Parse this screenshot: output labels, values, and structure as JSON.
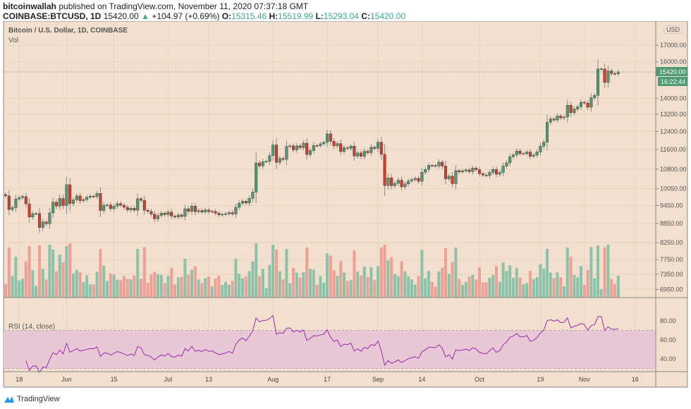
{
  "header": {
    "author": "bitcoinwallah",
    "published": "published on TradingView.com, November 11, 2020 07:37:18 GMT",
    "symbol": "COINBASE:BTCUSD, 1D",
    "last": "15420.00",
    "change": "+104.97 (+0.69%)",
    "o_label": "O:",
    "o": "15315.46",
    "h_label": "H:",
    "h": "15519.99",
    "l_label": "L:",
    "l": "15293.04",
    "c_label": "C:",
    "c": "15420.00"
  },
  "pane_legend": {
    "title": "Bitcoin / U.S. Dollar, 1D, COINBASE",
    "vol": "Vol",
    "rsi": "RSI (14, close)"
  },
  "axis": {
    "currency": "USD",
    "countdown": "16:22:44"
  },
  "footer": {
    "brand": "TradingView"
  },
  "colors": {
    "background": "#f2dfcd",
    "up": "#4e9a72",
    "down": "#c8402f",
    "rsi_line": "#9c27b0",
    "rsi_band": "#e8c8d4",
    "last_price": "#4e9a72"
  },
  "chart_data": {
    "type": "candlestick",
    "title": "Bitcoin / U.S. Dollar, 1D, COINBASE",
    "start_date": "2020-05-14",
    "end_date": "2020-11-11",
    "scale": "log",
    "grid": true,
    "price_ticks": [
      "17000.00",
      "16000.00",
      "14000.00",
      "13200.00",
      "12400.00",
      "11600.00",
      "10800.00",
      "10050.00",
      "9450.00",
      "8850.00",
      "8250.00",
      "7750.00",
      "7350.00",
      "6950.00"
    ],
    "price_tick_values": [
      17000,
      16000,
      14000,
      13200,
      12400,
      11600,
      10800,
      10050,
      9450,
      8850,
      8250,
      7750,
      7350,
      6950
    ],
    "last_price": "15420.00",
    "x_ticks": [
      {
        "label": "18",
        "date": "2020-05-18"
      },
      {
        "label": "Jun",
        "date": "2020-06-01"
      },
      {
        "label": "15",
        "date": "2020-06-15"
      },
      {
        "label": "Jul",
        "date": "2020-07-01"
      },
      {
        "label": "13",
        "date": "2020-07-13"
      },
      {
        "label": "Aug",
        "date": "2020-08-01"
      },
      {
        "label": "17",
        "date": "2020-08-17"
      },
      {
        "label": "Sep",
        "date": "2020-09-01"
      },
      {
        "label": "14",
        "date": "2020-09-14"
      },
      {
        "label": "Oct",
        "date": "2020-10-01"
      },
      {
        "label": "19",
        "date": "2020-10-19"
      },
      {
        "label": "Nov",
        "date": "2020-11-01"
      },
      {
        "label": "16",
        "date": "2020-11-16"
      }
    ],
    "closes": [
      9790,
      9310,
      9380,
      9680,
      9730,
      9770,
      9510,
      9060,
      9170,
      9180,
      8720,
      8900,
      8840,
      9200,
      9570,
      9430,
      9700,
      9450,
      10200,
      9520,
      9650,
      9790,
      9620,
      9660,
      9740,
      9780,
      9770,
      9880,
      9280,
      9460,
      9470,
      9340,
      9430,
      9520,
      9460,
      9390,
      9300,
      9360,
      9290,
      9690,
      9630,
      9290,
      9250,
      9160,
      9000,
      9110,
      9190,
      9140,
      9230,
      9090,
      9060,
      9130,
      9080,
      9340,
      9250,
      9430,
      9240,
      9280,
      9230,
      9300,
      9240,
      9250,
      9190,
      9130,
      9150,
      9170,
      9210,
      9160,
      9390,
      9530,
      9600,
      9540,
      9700,
      9930,
      11050,
      10930,
      11100,
      11110,
      11350,
      11800,
      11070,
      11230,
      11190,
      11740,
      11760,
      11590,
      11760,
      11680,
      11880,
      11390,
      11560,
      11780,
      11770,
      11850,
      11910,
      12290,
      11960,
      11760,
      11860,
      11520,
      11680,
      11650,
      11750,
      11330,
      11460,
      11320,
      11530,
      11470,
      11700,
      11650,
      11920,
      11400,
      10170,
      10460,
      10160,
      10250,
      10370,
      10120,
      10230,
      10340,
      10390,
      10440,
      10330,
      10680,
      10790,
      10950,
      10940,
      10930,
      11080,
      10920,
      10420,
      10530,
      10240,
      10740,
      10690,
      10730,
      10770,
      10700,
      10840,
      10780,
      10620,
      10570,
      10550,
      10670,
      10790,
      10600,
      10670,
      10920,
      11050,
      11300,
      11380,
      11540,
      11430,
      11430,
      11500,
      11320,
      11370,
      11500,
      11750,
      11920,
      12820,
      12980,
      12930,
      13120,
      13030,
      13070,
      13650,
      13280,
      13460,
      13570,
      13800,
      13760,
      13550,
      14030,
      14150,
      15590,
      15590,
      14840,
      15480,
      15330,
      15310,
      15420
    ],
    "rsi": {
      "period": 14,
      "source": "close",
      "ticks": [
        "80.00",
        "60.00",
        "40.00"
      ],
      "tick_values": [
        80,
        60,
        40
      ],
      "upper_band": 70,
      "lower_band": 30,
      "ylim": [
        25,
        88
      ]
    }
  }
}
